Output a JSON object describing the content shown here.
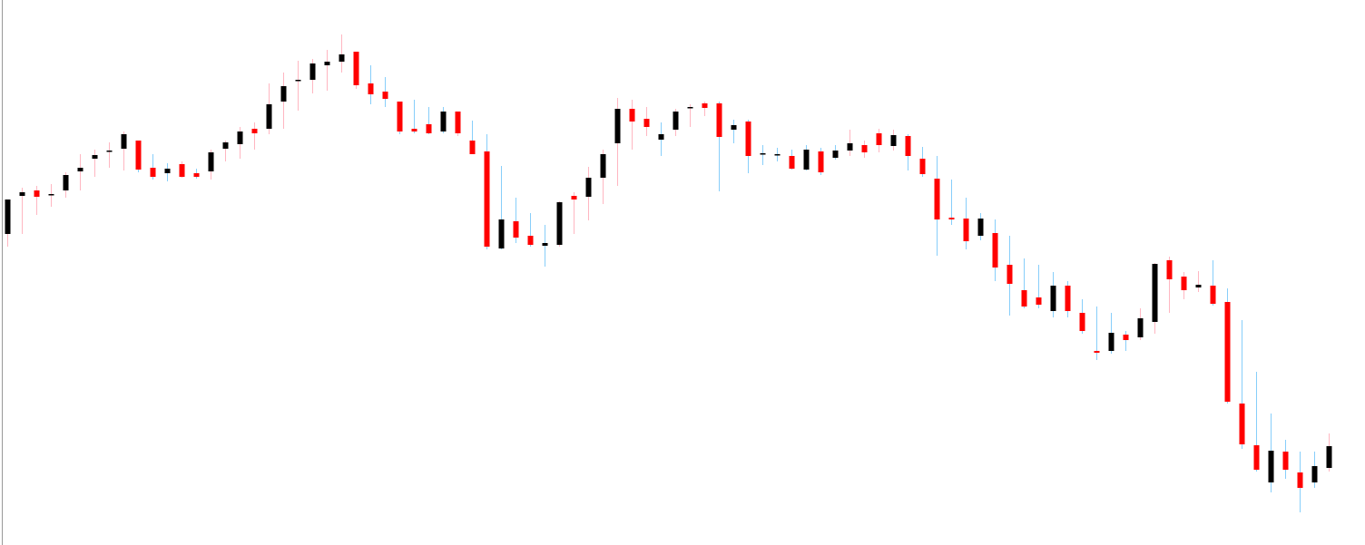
{
  "chart_data": {
    "type": "candlestick",
    "ylim": [
      0,
      601
    ],
    "up_color": "#000000",
    "down_color": "#ff0000",
    "open": [
      343,
      385,
      391,
      387,
      391,
      412,
      426,
      435,
      437,
      446,
      416,
      410,
      420,
      410,
      412,
      437,
      442,
      459,
      459,
      489,
      513,
      513,
      529,
      533,
      544,
      509,
      500,
      489,
      459,
      464,
      456,
      478,
      446,
      434,
      327,
      357,
      341,
      330,
      331,
      385,
      384,
      405,
      443,
      481,
      470,
      447,
      458,
      483,
      487,
      487,
      458,
      467,
      432,
      431,
      429,
      414,
      434,
      427,
      435,
      441,
      454,
      440,
      451,
      426,
      404,
      361,
      360,
      341,
      344,
      309,
      281,
      273,
      258,
      286,
      256,
      214,
      214,
      232,
      229,
      246,
      314,
      296,
      284,
      286,
      268,
      156,
      110,
      69,
      103,
      80,
      69,
      85
    ],
    "high": [
      381,
      394,
      396,
      398,
      411,
      431,
      436,
      444,
      456,
      446,
      431,
      421,
      423,
      415,
      436,
      446,
      461,
      466,
      509,
      521,
      534,
      536,
      546,
      563,
      544,
      529,
      516,
      489,
      491,
      483,
      483,
      478,
      468,
      453,
      418,
      383,
      366,
      353,
      379,
      389,
      417,
      436,
      493,
      491,
      483,
      466,
      481,
      486,
      489,
      489,
      469,
      469,
      441,
      438,
      436,
      441,
      438,
      441,
      458,
      446,
      459,
      458,
      453,
      439,
      429,
      403,
      383,
      366,
      359,
      341,
      316,
      309,
      301,
      291,
      271,
      263,
      256,
      236,
      261,
      311,
      318,
      301,
      302,
      314,
      283,
      248,
      191,
      145,
      116,
      103,
      103,
      123
    ],
    "low": [
      329,
      343,
      364,
      373,
      383,
      391,
      406,
      416,
      413,
      411,
      403,
      401,
      405,
      404,
      403,
      423,
      426,
      436,
      453,
      459,
      479,
      498,
      501,
      521,
      503,
      486,
      483,
      453,
      454,
      453,
      454,
      451,
      431,
      326,
      326,
      333,
      329,
      307,
      329,
      343,
      358,
      376,
      396,
      436,
      451,
      429,
      451,
      461,
      473,
      390,
      443,
      410,
      419,
      423,
      414,
      413,
      408,
      425,
      429,
      427,
      433,
      435,
      413,
      406,
      319,
      353,
      326,
      336,
      291,
      253,
      261,
      261,
      251,
      251,
      233,
      204,
      211,
      214,
      226,
      233,
      256,
      271,
      279,
      264,
      156,
      106,
      81,
      58,
      73,
      36,
      63,
      81
    ],
    "close": [
      381,
      389,
      384,
      387,
      408,
      416,
      430,
      435,
      453,
      414,
      406,
      415,
      406,
      406,
      433,
      444,
      456,
      454,
      486,
      506,
      513,
      531,
      533,
      541,
      507,
      497,
      492,
      456,
      456,
      454,
      478,
      454,
      431,
      329,
      359,
      339,
      331,
      333,
      378,
      381,
      405,
      431,
      481,
      467,
      461,
      453,
      478,
      483,
      482,
      450,
      463,
      429,
      432,
      431,
      415,
      436,
      411,
      435,
      443,
      433,
      441,
      452,
      429,
      409,
      359,
      359,
      335,
      360,
      306,
      288,
      263,
      265,
      286,
      258,
      236,
      212,
      234,
      226,
      250,
      310,
      293,
      281,
      287,
      266,
      158,
      111,
      83,
      104,
      83,
      63,
      87,
      109
    ],
    "wick_colors": [
      "#ffb6c1",
      "#ffb6c1",
      "#ffb6c1",
      "#ffb6c1",
      "#ffb6c1",
      "#ffb6c1",
      "#ffb6c1",
      "#ffb6c1",
      "#ffb6c1",
      "#87cefa",
      "#87cefa",
      "#87cefa",
      "#ffb6c1",
      "#87cefa",
      "#ffb6c1",
      "#ffb6c1",
      "#ffb6c1",
      "#ffb6c1",
      "#ffb6c1",
      "#ffb6c1",
      "#ffb6c1",
      "#ffb6c1",
      "#ffb6c1",
      "#ffb6c1",
      "#ffb6c1",
      "#87cefa",
      "#87cefa",
      "#87cefa",
      "#87cefa",
      "#87cefa",
      "#87cefa",
      "#ffb6c1",
      "#87cefa",
      "#87cefa",
      "#87cefa",
      "#87cefa",
      "#87cefa",
      "#87cefa",
      "#ffb6c1",
      "#ffb6c1",
      "#ffb6c1",
      "#ffb6c1",
      "#ffb6c1",
      "#ffb6c1",
      "#ffb6c1",
      "#87cefa",
      "#ffb6c1",
      "#ffb6c1",
      "#ffb6c1",
      "#87cefa",
      "#87cefa",
      "#87cefa",
      "#87cefa",
      "#87cefa",
      "#87cefa",
      "#87cefa",
      "#87cefa",
      "#87cefa",
      "#ffb6c1",
      "#ffb6c1",
      "#ffb6c1",
      "#ffb6c1",
      "#87cefa",
      "#87cefa",
      "#87cefa",
      "#87cefa",
      "#87cefa",
      "#87cefa",
      "#87cefa",
      "#87cefa",
      "#87cefa",
      "#87cefa",
      "#87cefa",
      "#87cefa",
      "#87cefa",
      "#87cefa",
      "#87cefa",
      "#87cefa",
      "#ffb6c1",
      "#ffb6c1",
      "#ffb6c1",
      "#ffb6c1",
      "#ffb6c1",
      "#87cefa",
      "#87cefa",
      "#87cefa",
      "#87cefa",
      "#87cefa",
      "#87cefa",
      "#87cefa",
      "#87cefa",
      "#ffb6c1"
    ]
  }
}
